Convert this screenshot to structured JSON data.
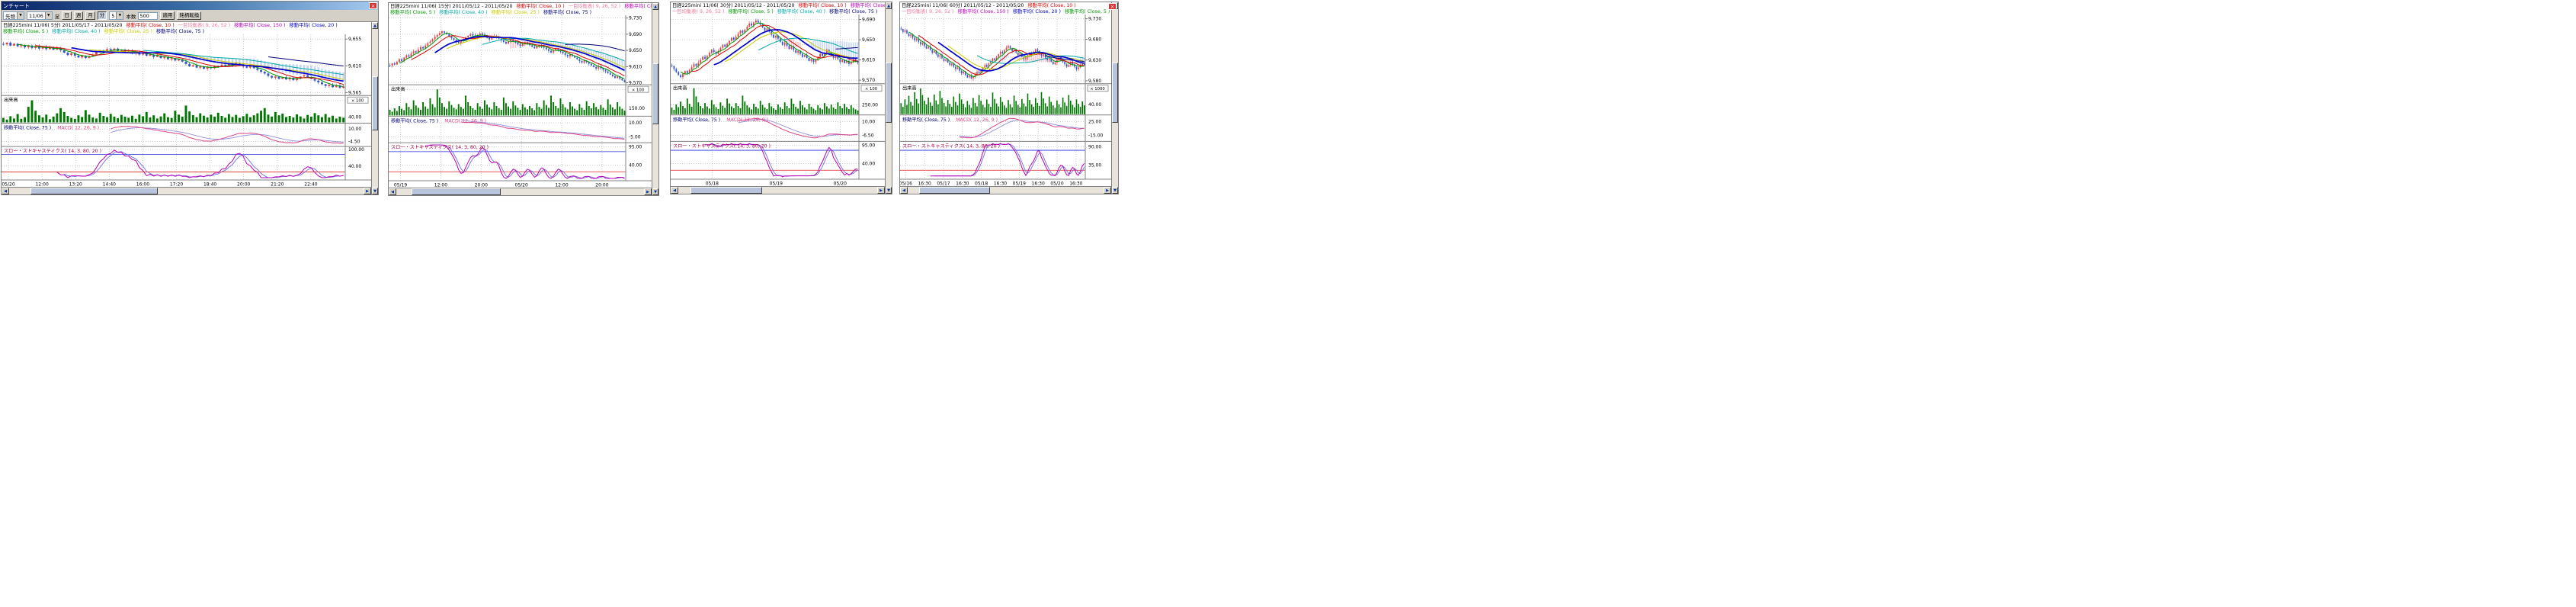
{
  "app": {
    "window_title": "ンチャート",
    "close_glyph": "×"
  },
  "toolbar": {
    "instrument": "先物",
    "contract": "11/06",
    "ashi_label": "足",
    "period_buttons": [
      "日",
      "週",
      "月",
      "分"
    ],
    "active_period": "分",
    "minutes": "5",
    "count_label": "本数",
    "count_value": "500",
    "apply_label": "適用",
    "switch_label": "銘柄転換"
  },
  "colors": {
    "candle_up": "#dd4444",
    "candle_down": "#3355cc",
    "volume": "#007700",
    "cloud_bull": "#f4a0b4",
    "cloud_bear": "#a8c4f0",
    "macd": "#dd4488",
    "macd_signal": "#9090dd",
    "stoch_k": "#bb00bb",
    "stoch_d": "#7070dd",
    "ref_high": "#2233dd",
    "ref_low": "#dd2222",
    "grid": "#aaaaaa",
    "separator": "#808080"
  },
  "ma_defs": [
    {
      "period": 5,
      "color": "#009900",
      "width": 1
    },
    {
      "period": 10,
      "color": "#dd0000",
      "width": 1
    },
    {
      "period": 25,
      "color": "#cccc00",
      "width": 1
    },
    {
      "period": 40,
      "color": "#00aaaa",
      "width": 1
    },
    {
      "period": 75,
      "color": "#000077",
      "width": 1
    },
    {
      "period": 150,
      "color": "#bb00bb",
      "width": 1
    },
    {
      "period": 20,
      "color": "#0000cc",
      "width": 1.7
    }
  ],
  "charts": [
    {
      "title": "日経225mini 11/06( 5分) 2011/05/17 - 2011/05/20",
      "legend_row1": [
        {
          "label": "移動平均( Close, 10 )",
          "color": "#dd0000"
        },
        {
          "label": "一目均衡表( 9, 26, 52 )",
          "color": "#ee7799"
        },
        {
          "label": "移動平均( Close, 150 )",
          "color": "#bb00bb"
        },
        {
          "label": "移動平均( Close, 20 )",
          "color": "#0000cc"
        }
      ],
      "legend_row2": [
        {
          "label": "移動平均( Close, 5 )",
          "color": "#009900"
        },
        {
          "label": "移動平均( Close, 40 )",
          "color": "#00aaaa"
        },
        {
          "label": "移動平均( Close, 25 )",
          "color": "#cccc00"
        },
        {
          "label": "移動平均( Close, 75 )",
          "color": "#000077"
        }
      ],
      "y_ticks": [
        {
          "label": "9,655",
          "value": 9655
        },
        {
          "label": "9,610",
          "value": 9610
        },
        {
          "label": "9,565",
          "value": 9565
        }
      ],
      "y_range": [
        9560,
        9663
      ],
      "volume_label": "出来高",
      "volume_unit": "× 100",
      "vol_ticks": [
        {
          "label": "170.00",
          "value": 170
        },
        {
          "label": "40.00",
          "value": 40
        }
      ],
      "vol_max": 190,
      "macd_legend": [
        {
          "label": "移動平均( Close, 75 )",
          "color": "#000077"
        },
        {
          "label": "MACD( 12, 26, 9 )",
          "color": "#dd4488"
        }
      ],
      "macd_ticks": [
        "10.00",
        "-4.50"
      ],
      "stoch_legend": "スロー・ストキャスティクス( 14, 3, 80, 20 )",
      "stoch_ticks": [
        {
          "label": "100.00",
          "value": 100
        },
        {
          "label": "40.00",
          "value": 40
        }
      ],
      "x_labels": [
        "05/20",
        "12:00",
        "13:20",
        "14:40",
        "16:00",
        "17:20",
        "18:40",
        "20:00",
        "21:20",
        "22:40"
      ],
      "x_first": 0.02,
      "x_last": 0.9,
      "closes": [
        9646,
        9649,
        9644,
        9647,
        9643,
        9645,
        9641,
        9644,
        9640,
        9643,
        9639,
        9642,
        9638,
        9641,
        9637,
        9640,
        9636,
        9632,
        9628,
        9631,
        9627,
        9624,
        9627,
        9623,
        9626,
        9629,
        9633,
        9636,
        9634,
        9638,
        9636,
        9639,
        9635,
        9637,
        9633,
        9635,
        9631,
        9633,
        9629,
        9631,
        9627,
        9629,
        9625,
        9627,
        9623,
        9625,
        9621,
        9623,
        9619,
        9621,
        9617,
        9613,
        9609,
        9611,
        9607,
        9609,
        9605,
        9608,
        9606,
        9610,
        9608,
        9612,
        9610,
        9613,
        9611,
        9614,
        9612,
        9609,
        9607,
        9610,
        9606,
        9603,
        9600,
        9597,
        9593,
        9590,
        9592,
        9588,
        9591,
        9587,
        9590,
        9586,
        9589,
        9592,
        9594,
        9591,
        9588,
        9585,
        9582,
        9579,
        9576,
        9578,
        9574,
        9577,
        9573,
        9575
      ],
      "volumes": [
        35,
        22,
        48,
        30,
        65,
        28,
        40,
        120,
        170,
        90,
        55,
        38,
        60,
        25,
        45,
        70,
        110,
        80,
        50,
        35,
        28,
        55,
        42,
        95,
        60,
        38,
        30,
        75,
        50,
        40,
        66,
        45,
        32,
        58,
        44,
        36,
        52,
        28,
        60,
        48,
        80,
        38,
        55,
        30,
        46,
        70,
        40,
        34,
        90,
        60,
        44,
        130,
        85,
        56,
        40,
        70,
        52,
        38,
        60,
        45,
        75,
        50,
        36,
        64,
        42,
        58,
        35,
        48,
        66,
        40,
        55,
        70,
        90,
        110,
        60,
        45,
        80,
        55,
        68,
        42,
        50,
        38,
        62,
        46,
        30,
        58,
        44,
        72,
        55,
        40,
        65,
        38,
        52,
        30,
        44,
        36
      ]
    },
    {
      "title": "日経225mini 11/06( 15分) 2011/05/12 - 2011/05/20",
      "legend_row1": [
        {
          "label": "移動平均( Close, 10 )",
          "color": "#dd0000"
        },
        {
          "label": "一目均衡表( 9, 26, 52 )",
          "color": "#ee7799"
        },
        {
          "label": "移動平均( Close, 150 )",
          "color": "#bb00bb"
        },
        {
          "label": "移動平均( Close, 20 )",
          "color": "#0000cc"
        }
      ],
      "legend_row2": [
        {
          "label": "移動平均( Close, 5 )",
          "color": "#009900"
        },
        {
          "label": "移動平均( Close, 40 )",
          "color": "#00aaaa"
        },
        {
          "label": "移動平均( Close, 25 )",
          "color": "#cccc00"
        },
        {
          "label": "移動平均( Close, 75 )",
          "color": "#000077"
        }
      ],
      "y_ticks": [
        {
          "label": "9,730",
          "value": 9730
        },
        {
          "label": "9,690",
          "value": 9690
        },
        {
          "label": "9,650",
          "value": 9650
        },
        {
          "label": "9,610",
          "value": 9610
        },
        {
          "label": "9,570",
          "value": 9570
        }
      ],
      "y_range": [
        9565,
        9737
      ],
      "volume_label": "出来高",
      "volume_unit": "× 100",
      "vol_ticks": [
        {
          "label": "550.00",
          "value": 550
        },
        {
          "label": "150.00",
          "value": 150
        }
      ],
      "vol_max": 600,
      "macd_legend": [
        {
          "label": "移動平均( Close, 75 )",
          "color": "#000077"
        },
        {
          "label": "MACD( 12, 26, 9 )",
          "color": "#dd4488"
        }
      ],
      "macd_ticks": [
        "10.00",
        "-5.00"
      ],
      "stoch_legend": "スロー・ストキャスティクス( 14, 3, 80, 20 )",
      "stoch_ticks": [
        {
          "label": "95.00",
          "value": 95
        },
        {
          "label": "40.00",
          "value": 40
        }
      ],
      "x_labels": [
        "05/19",
        "12:00",
        "20:00",
        "05/20",
        "12:00",
        "20:00"
      ],
      "x_first": 0.05,
      "x_last": 0.9,
      "closes": [
        9612,
        9618,
        9615,
        9622,
        9628,
        9624,
        9632,
        9638,
        9635,
        9642,
        9648,
        9645,
        9652,
        9658,
        9655,
        9662,
        9668,
        9672,
        9678,
        9684,
        9688,
        9693,
        9697,
        9694,
        9690,
        9685,
        9680,
        9676,
        9672,
        9668,
        9673,
        9678,
        9682,
        9686,
        9690,
        9687,
        9683,
        9688,
        9692,
        9689,
        9685,
        9681,
        9677,
        9682,
        9686,
        9683,
        9679,
        9675,
        9671,
        9667,
        9672,
        9676,
        9673,
        9669,
        9665,
        9661,
        9666,
        9670,
        9667,
        9663,
        9659,
        9655,
        9660,
        9664,
        9661,
        9657,
        9653,
        9649,
        9645,
        9650,
        9654,
        9651,
        9647,
        9643,
        9639,
        9635,
        9640,
        9636,
        9632,
        9628,
        9624,
        9620,
        9625,
        9621,
        9617,
        9613,
        9609,
        9605,
        9610,
        9606,
        9602,
        9598,
        9594,
        9590,
        9586,
        9582,
        9586,
        9580,
        9576,
        9572
      ],
      "volumes": [
        120,
        80,
        150,
        95,
        200,
        140,
        110,
        260,
        180,
        130,
        320,
        210,
        160,
        120,
        280,
        190,
        140,
        360,
        240,
        170,
        550,
        380,
        260,
        180,
        140,
        300,
        220,
        160,
        130,
        240,
        180,
        140,
        420,
        280,
        200,
        150,
        120,
        260,
        190,
        140,
        320,
        230,
        170,
        130,
        280,
        200,
        150,
        120,
        380,
        260,
        190,
        140,
        300,
        210,
        160,
        120,
        240,
        170,
        130,
        200,
        150,
        110,
        260,
        180,
        140,
        320,
        220,
        160,
        420,
        280,
        200,
        150,
        360,
        240,
        170,
        130,
        280,
        190,
        140,
        110,
        240,
        160,
        120,
        300,
        200,
        150,
        260,
        180,
        130,
        220,
        160,
        120,
        340,
        230,
        170,
        130,
        280,
        190,
        140,
        100
      ]
    },
    {
      "title": "日経225mini 11/06( 30分) 2011/05/12 - 2011/05/20",
      "legend_row1": [
        {
          "label": "移動平均( Close, 10 )",
          "color": "#dd0000"
        },
        {
          "label": "移動平均( Close, 150 )",
          "color": "#bb00bb"
        },
        {
          "label": "移動平均( Close, 20 )",
          "color": "#0000cc"
        }
      ],
      "legend_row2": [
        {
          "label": "一目均衡表( 9, 26, 52 )",
          "color": "#ee7799"
        },
        {
          "label": "移動平均( Close, 5 )",
          "color": "#009900"
        },
        {
          "label": "移動平均( Close, 40 )",
          "color": "#00aaaa"
        },
        {
          "label": "移動平均( Close, 75 )",
          "color": "#000077"
        }
      ],
      "y_ticks": [
        {
          "label": "9,690",
          "value": 9690
        },
        {
          "label": "9,650",
          "value": 9650
        },
        {
          "label": "9,610",
          "value": 9610
        },
        {
          "label": "9,570",
          "value": 9570
        }
      ],
      "y_range": [
        9563,
        9700
      ],
      "volume_label": "出来高",
      "volume_unit": "× 100",
      "vol_ticks": [
        {
          "label": "700.00",
          "value": 700
        },
        {
          "label": "250.00",
          "value": 250
        }
      ],
      "vol_max": 760,
      "macd_legend": [
        {
          "label": "移動平均( Close, 75 )",
          "color": "#000077"
        },
        {
          "label": "MACD( 12, 26, 9 )",
          "color": "#dd4488"
        }
      ],
      "macd_ticks": [
        "10.00",
        "-6.50"
      ],
      "stoch_legend": "スロー・ストキャスティクス( 14, 3, 80, 20 )",
      "stoch_ticks": [
        {
          "label": "95.00",
          "value": 95
        },
        {
          "label": "40.00",
          "value": 40
        }
      ],
      "x_labels": [
        "05/18",
        "05/19",
        "05/20"
      ],
      "x_first": 0.22,
      "x_last": 0.9,
      "closes": [
        9598,
        9592,
        9586,
        9580,
        9576,
        9582,
        9588,
        9584,
        9590,
        9596,
        9602,
        9598,
        9604,
        9610,
        9616,
        9612,
        9618,
        9624,
        9630,
        9626,
        9622,
        9628,
        9634,
        9640,
        9636,
        9642,
        9648,
        9654,
        9650,
        9656,
        9662,
        9668,
        9664,
        9670,
        9676,
        9682,
        9678,
        9684,
        9688,
        9684,
        9680,
        9674,
        9668,
        9672,
        9666,
        9660,
        9654,
        9658,
        9652,
        9646,
        9640,
        9644,
        9638,
        9632,
        9636,
        9630,
        9624,
        9628,
        9622,
        9616,
        9620,
        9614,
        9608,
        9612,
        9606,
        9610,
        9616,
        9622,
        9618,
        9624,
        9630,
        9626,
        9620,
        9614,
        9618,
        9612,
        9606,
        9610,
        9604,
        9608,
        9602,
        9606,
        9612,
        9608,
        9605
      ],
      "volumes": [
        180,
        120,
        260,
        190,
        340,
        220,
        160,
        420,
        280,
        200,
        700,
        480,
        320,
        220,
        160,
        300,
        210,
        150,
        380,
        260,
        190,
        140,
        320,
        230,
        170,
        420,
        290,
        210,
        160,
        300,
        220,
        160,
        500,
        340,
        240,
        180,
        130,
        280,
        200,
        150,
        360,
        250,
        180,
        140,
        300,
        210,
        160,
        120,
        260,
        190,
        140,
        320,
        220,
        160,
        420,
        280,
        200,
        150,
        360,
        240,
        180,
        130,
        280,
        200,
        150,
        110,
        240,
        170,
        130,
        300,
        210,
        150,
        260,
        180,
        140,
        320,
        220,
        160,
        280,
        190,
        140,
        240,
        170,
        130,
        100
      ]
    },
    {
      "title": "日経225mini 11/06( 60分) 2011/05/12 - 2011/05/20",
      "legend_row1": [
        {
          "label": "移動平均( Close, 10 )",
          "color": "#dd0000"
        }
      ],
      "legend_row2": [
        {
          "label": "一目均衡表( 9, 26, 52 )",
          "color": "#ee7799"
        },
        {
          "label": "移動平均( Close, 150 )",
          "color": "#bb00bb"
        },
        {
          "label": "移動平均( Close, 20 )",
          "color": "#0000cc"
        },
        {
          "label": "移動平均( Close, 5 )",
          "color": "#009900"
        }
      ],
      "y_ticks": [
        {
          "label": "9,730",
          "value": 9730
        },
        {
          "label": "9,680",
          "value": 9680
        },
        {
          "label": "9,630",
          "value": 9630
        },
        {
          "label": "9,580",
          "value": 9580
        }
      ],
      "y_range": [
        9573,
        9740
      ],
      "volume_label": "出来高",
      "volume_unit": "× 1000",
      "vol_ticks": [
        {
          "label": "105.00",
          "value": 105
        },
        {
          "label": "40.00",
          "value": 40
        }
      ],
      "vol_max": 115,
      "macd_legend": [
        {
          "label": "移動平均( Close, 75 )",
          "color": "#000077"
        },
        {
          "label": "MACD( 12, 26, 9 )",
          "color": "#dd4488"
        }
      ],
      "macd_ticks": [
        "25.00",
        "-15.00"
      ],
      "stoch_legend": "スロー・ストキャスティクス( 14, 3, 80, 20 )",
      "stoch_ticks": [
        {
          "label": "90.00",
          "value": 90
        },
        {
          "label": "35.00",
          "value": 35
        }
      ],
      "x_labels": [
        "05/16",
        "16:30",
        "05/17",
        "16:30",
        "05/18",
        "16:30",
        "05/19",
        "16:30",
        "05/20",
        "16:30"
      ],
      "x_first": 0.03,
      "x_last": 0.95,
      "closes": [
        9705,
        9698,
        9702,
        9694,
        9688,
        9692,
        9684,
        9678,
        9682,
        9674,
        9668,
        9672,
        9664,
        9658,
        9662,
        9654,
        9648,
        9652,
        9644,
        9638,
        9642,
        9634,
        9628,
        9632,
        9624,
        9618,
        9622,
        9614,
        9608,
        9612,
        9604,
        9598,
        9602,
        9594,
        9588,
        9592,
        9586,
        9590,
        9596,
        9602,
        9598,
        9606,
        9612,
        9618,
        9614,
        9622,
        9628,
        9634,
        9630,
        9638,
        9644,
        9650,
        9646,
        9654,
        9660,
        9664,
        9658,
        9652,
        9656,
        9648,
        9642,
        9646,
        9638,
        9632,
        9636,
        9642,
        9648,
        9644,
        9650,
        9656,
        9652,
        9646,
        9640,
        9644,
        9636,
        9630,
        9634,
        9626,
        9620,
        9624,
        9630,
        9636,
        9632,
        9626,
        9620,
        9614,
        9618,
        9624,
        9620,
        9614,
        9608,
        9612,
        9618,
        9622,
        9618
      ],
      "volumes": [
        45,
        30,
        60,
        38,
        75,
        50,
        35,
        90,
        62,
        44,
        105,
        78,
        55,
        40,
        68,
        48,
        34,
        80,
        56,
        40,
        95,
        66,
        46,
        32,
        58,
        42,
        30,
        72,
        50,
        36,
        84,
        60,
        42,
        28,
        54,
        38,
        26,
        66,
        46,
        32,
        78,
        55,
        38,
        28,
        60,
        42,
        30,
        88,
        62,
        44,
        32,
        70,
        50,
        36,
        26,
        58,
        40,
        28,
        76,
        54,
        38,
        28,
        62,
        44,
        32,
        84,
        58,
        40,
        30,
        66,
        46,
        34,
        90,
        64,
        45,
        32,
        72,
        50,
        36,
        26,
        56,
        40,
        28,
        68,
        48,
        34,
        78,
        55,
        38,
        28,
        60,
        42,
        30,
        52,
        36
      ]
    }
  ]
}
